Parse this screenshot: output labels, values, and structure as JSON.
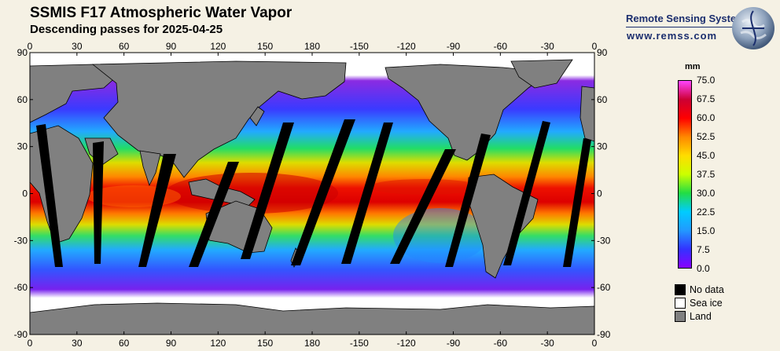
{
  "header": {
    "title": "SSMIS F17 Atmospheric Water Vapor",
    "subtitle": "Descending passes for 2025-04-25"
  },
  "brand": {
    "name": "Remote Sensing Systems",
    "url": "www.remss.com"
  },
  "map": {
    "lon_ticks": [
      "0",
      "30",
      "60",
      "90",
      "120",
      "150",
      "180",
      "-150",
      "-120",
      "-90",
      "-60",
      "-30",
      "0"
    ],
    "lat_ticks": [
      "90",
      "60",
      "30",
      "0",
      "-30",
      "-60",
      "-90"
    ],
    "colors": {
      "land": "#808080",
      "no_data": "#000000",
      "sea_ice": "#ffffff",
      "coast": "#000000"
    }
  },
  "colorbar": {
    "unit": "mm",
    "labels": [
      "75.0",
      "67.5",
      "60.0",
      "52.5",
      "45.0",
      "37.5",
      "30.0",
      "22.5",
      "15.0",
      "7.5",
      "0.0"
    ],
    "stops": [
      "#ff44ff",
      "#cc0033",
      "#ff0000",
      "#ff8800",
      "#ffdd00",
      "#ccff00",
      "#22dd44",
      "#00ccff",
      "#2299ff",
      "#3333ff",
      "#8800ff"
    ]
  },
  "legend": [
    {
      "label": "No data",
      "color": "#000000"
    },
    {
      "label": "Sea ice",
      "color": "#ffffff"
    },
    {
      "label": "Land",
      "color": "#808080"
    }
  ]
}
